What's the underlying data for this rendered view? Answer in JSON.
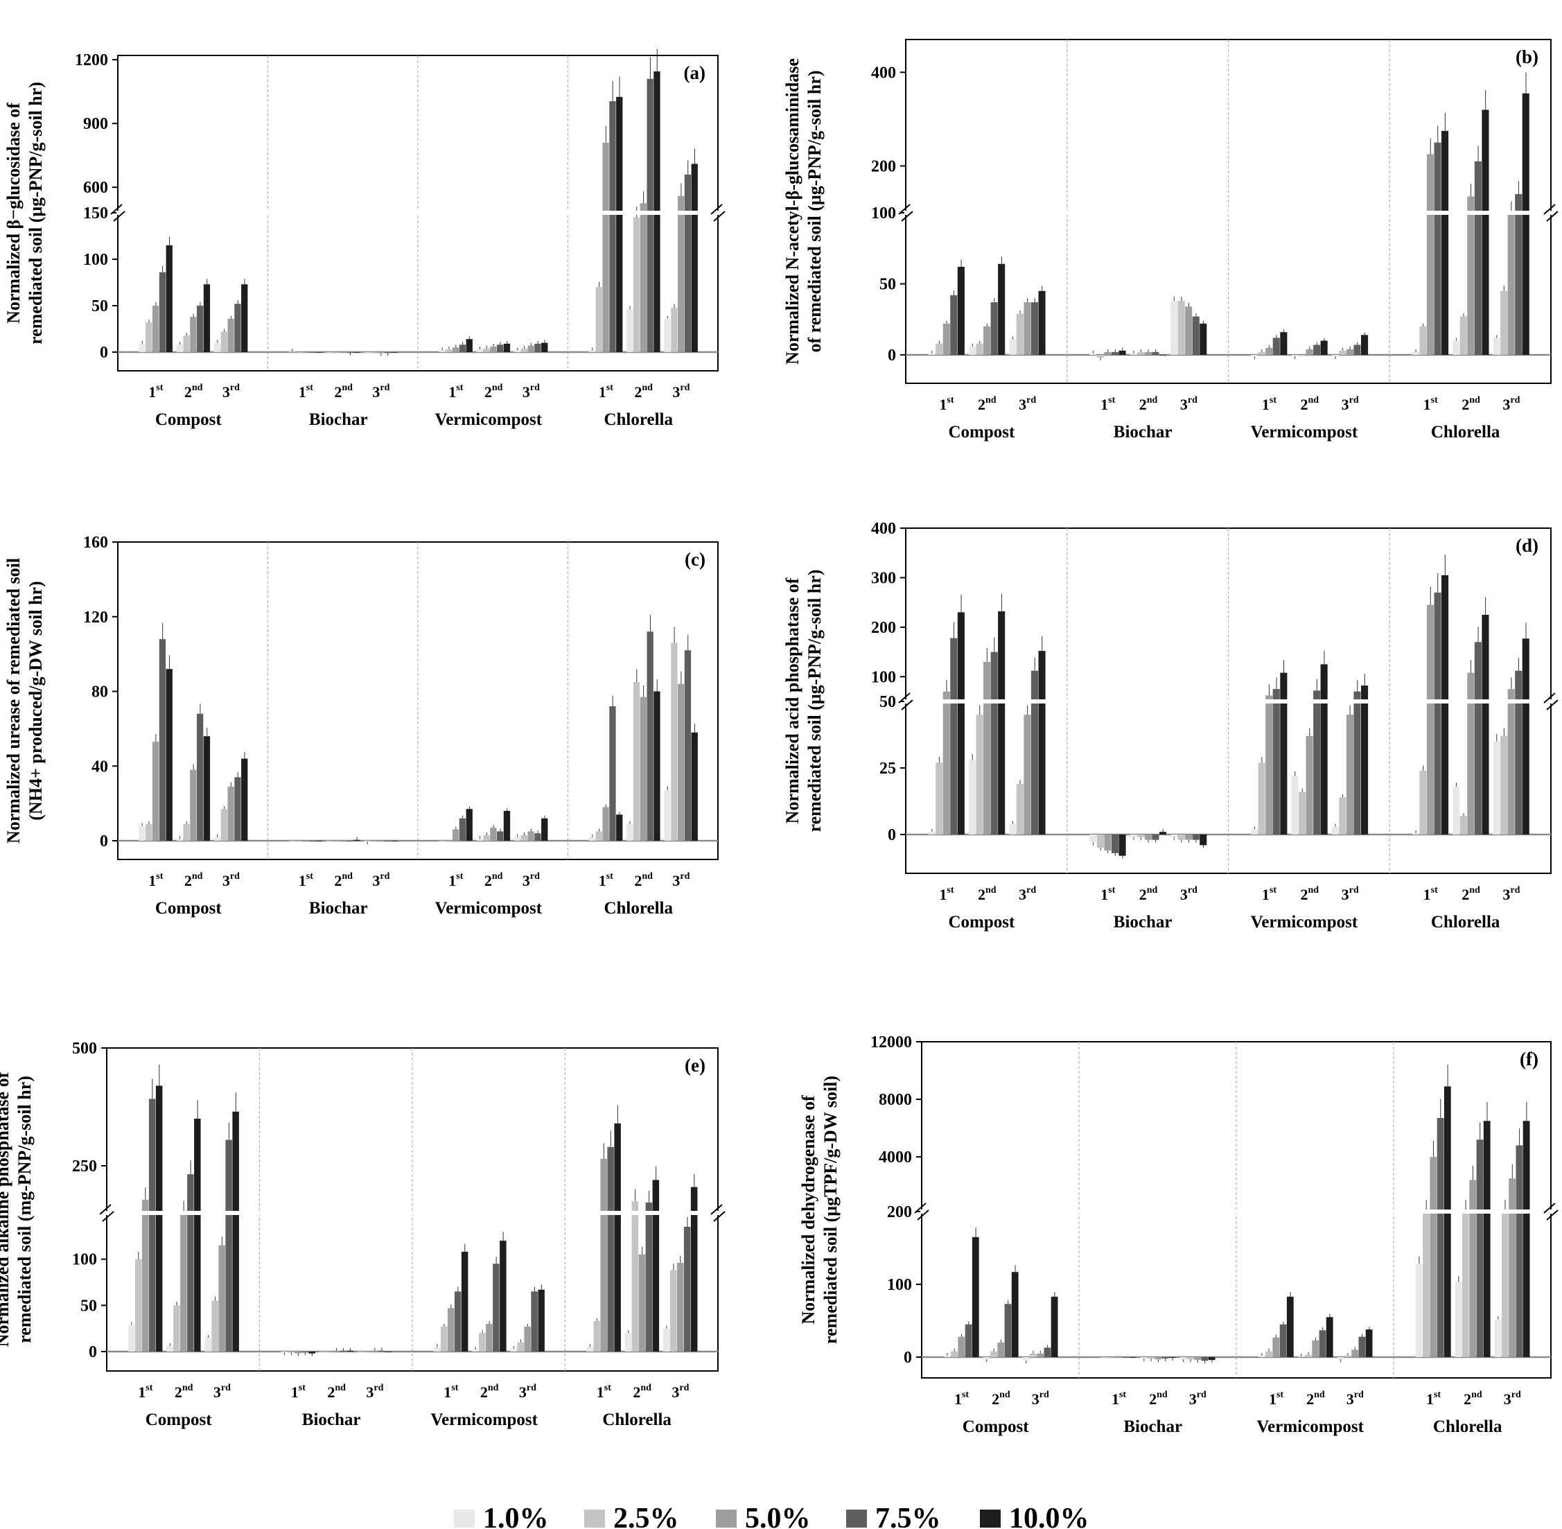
{
  "legend": {
    "series": [
      "1.0%",
      "2.5%",
      "5.0%",
      "7.5%",
      "10.0%"
    ],
    "colors": [
      "#e8e8e8",
      "#c4c4c4",
      "#9e9e9e",
      "#5e5e5e",
      "#1e1e1e"
    ]
  },
  "groups": [
    "Compost",
    "Biochar",
    "Vermicompost",
    "Chlorella"
  ],
  "harvests": [
    {
      "num": "1",
      "sup": "st"
    },
    {
      "num": "2",
      "sup": "nd"
    },
    {
      "num": "3",
      "sup": "rd"
    }
  ],
  "chart_data": [
    {
      "type": "bar",
      "panel": "(a)",
      "ylabel": [
        "Normalized β−glucosidase of",
        "remediated soil (μg-PNP/g-soil hr)"
      ],
      "broken_axis": true,
      "lower_range": [
        0,
        150
      ],
      "lower_ticks": [
        0,
        50,
        100,
        150
      ],
      "upper_range": [
        480,
        1220
      ],
      "upper_ticks": [
        600,
        900,
        1200
      ],
      "values": [
        [
          [
            9,
            32,
            50,
            86,
            115
          ],
          [
            8,
            18,
            38,
            50,
            73
          ],
          [
            10,
            22,
            36,
            52,
            73
          ]
        ],
        [
          [
            0.5,
            0,
            0,
            0,
            0
          ],
          [
            0,
            0,
            0,
            -0.5,
            0
          ],
          [
            0,
            0,
            -1,
            -1,
            0
          ]
        ],
        [
          [
            2,
            3,
            5,
            8,
            14
          ],
          [
            3,
            4,
            6,
            8,
            9
          ],
          [
            2,
            4,
            7,
            9,
            10
          ]
        ],
        [
          [
            2,
            70,
            810,
            1005,
            1025
          ],
          [
            46,
            145,
            525,
            1110,
            1145
          ],
          [
            36,
            48,
            560,
            660,
            710
          ]
        ]
      ]
    },
    {
      "type": "bar",
      "panel": "(b)",
      "ylabel": [
        "Normalized N-acetyl-β-glucosaminidase",
        "of remediated soil (μg-PNP/g-soil hr)"
      ],
      "broken_axis": true,
      "lower_range": [
        -15,
        100
      ],
      "lower_ticks": [
        0,
        50,
        100
      ],
      "upper_range": [
        100,
        470
      ],
      "upper_ticks": [
        200,
        400
      ],
      "values": [
        [
          [
            1,
            8,
            22,
            42,
            62
          ],
          [
            6,
            8,
            20,
            37,
            64
          ],
          [
            11,
            29,
            37,
            37,
            45
          ]
        ],
        [
          [
            1,
            -2,
            2,
            2,
            3
          ],
          [
            1,
            2,
            2,
            2,
            0
          ],
          [
            38,
            38,
            34,
            27,
            22
          ]
        ],
        [
          [
            -1,
            2,
            5,
            12,
            16
          ],
          [
            -1,
            0,
            4,
            7,
            10
          ],
          [
            -1,
            3,
            4,
            7,
            14
          ]
        ],
        [
          [
            2,
            20,
            225,
            250,
            275
          ],
          [
            10,
            27,
            135,
            210,
            320
          ],
          [
            12,
            45,
            100,
            140,
            355
          ]
        ]
      ]
    },
    {
      "type": "bar",
      "panel": "(c)",
      "ylabel": [
        "Normalized urease of remediated soil",
        "(NH4+ produced/g-DW soil hr)"
      ],
      "broken_axis": false,
      "range": [
        -8,
        160
      ],
      "ticks": [
        0,
        40,
        80,
        120,
        160
      ],
      "values": [
        [
          [
            8,
            9,
            53,
            108,
            92
          ],
          [
            1,
            9,
            38,
            68,
            56
          ],
          [
            2,
            17,
            29,
            34,
            44
          ]
        ],
        [
          [
            0,
            0,
            0,
            0,
            0
          ],
          [
            0,
            0,
            0,
            0,
            0.5
          ],
          [
            -0.5,
            0,
            0,
            0,
            0
          ]
        ],
        [
          [
            0,
            0,
            6,
            12,
            17
          ],
          [
            1,
            3,
            7,
            5,
            16
          ],
          [
            2,
            3,
            5,
            4,
            12
          ]
        ],
        [
          [
            2,
            5,
            18,
            72,
            14
          ],
          [
            9,
            85,
            77,
            112,
            80
          ],
          [
            27,
            106,
            84,
            102,
            58
          ]
        ]
      ]
    },
    {
      "type": "bar",
      "panel": "(d)",
      "ylabel": [
        "Normalized acid phosphatase of",
        "remediated soil (μg-PNP/g-soil hr)"
      ],
      "broken_axis": true,
      "lower_range": [
        -15,
        50
      ],
      "lower_ticks": [
        0,
        25,
        50
      ],
      "upper_range": [
        50,
        400
      ],
      "upper_ticks": [
        100,
        200,
        300,
        400
      ],
      "values": [
        [
          [
            1,
            27,
            70,
            178,
            230
          ],
          [
            28,
            45,
            130,
            150,
            232
          ],
          [
            4,
            19,
            45,
            112,
            152
          ]
        ],
        [
          [
            -3,
            -5,
            -6,
            -7,
            -8
          ],
          [
            -1,
            -1,
            -2,
            -2,
            1
          ],
          [
            -1,
            -2,
            -2,
            -2,
            -4
          ]
        ],
        [
          [
            2,
            27,
            62,
            75,
            108
          ],
          [
            22,
            16,
            37,
            72,
            125
          ],
          [
            3,
            14,
            45,
            70,
            82
          ]
        ],
        [
          [
            0.5,
            24,
            245,
            270,
            305
          ],
          [
            18,
            7,
            108,
            170,
            225
          ],
          [
            35,
            37,
            75,
            112,
            177
          ]
        ]
      ]
    },
    {
      "type": "bar",
      "panel": "(e)",
      "ylabel": [
        "Normalized alkaline phosphatase of",
        "remediated soil (mg-PNP/g-soil hr)"
      ],
      "broken_axis": true,
      "lower_range": [
        -20,
        150
      ],
      "lower_ticks": [
        0,
        50,
        100
      ],
      "upper_range": [
        150,
        500
      ],
      "upper_ticks": [
        250,
        500
      ],
      "values": [
        [
          [
            29,
            100,
            178,
            392,
            420
          ],
          [
            6,
            50,
            152,
            232,
            350
          ],
          [
            15,
            55,
            115,
            305,
            365
          ]
        ],
        [
          [
            -1,
            -1,
            -2,
            -1,
            -2
          ],
          [
            0,
            0,
            1,
            1,
            1
          ],
          [
            0,
            0,
            1,
            1,
            0
          ]
        ],
        [
          [
            5,
            27,
            47,
            65,
            108
          ],
          [
            2,
            20,
            30,
            95,
            120
          ],
          [
            3,
            10,
            27,
            65,
            67
          ]
        ],
        [
          [
            5,
            33,
            265,
            290,
            340
          ],
          [
            20,
            175,
            105,
            172,
            220
          ],
          [
            25,
            88,
            96,
            135,
            205
          ]
        ]
      ]
    },
    {
      "type": "bar",
      "panel": "(f)",
      "ylabel": [
        "Normalized dehydrogenase of",
        "remediated soil (μgTPF/g-DW soil)"
      ],
      "broken_axis": true,
      "lower_range": [
        -30,
        200
      ],
      "lower_ticks": [
        0,
        100,
        200
      ],
      "upper_range": [
        200,
        12000
      ],
      "upper_ticks": [
        4000,
        8000,
        12000
      ],
      "values": [
        [
          [
            2,
            8,
            28,
            45,
            165
          ],
          [
            -3,
            8,
            20,
            73,
            117
          ],
          [
            -5,
            5,
            5,
            13,
            83
          ]
        ],
        [
          [
            0,
            0,
            0,
            0,
            0
          ],
          [
            -2,
            -2,
            -3,
            -2,
            -1
          ],
          [
            -3,
            -3,
            -4,
            -5,
            -4
          ]
        ],
        [
          [
            2,
            8,
            27,
            45,
            83
          ],
          [
            1,
            3,
            23,
            37,
            55
          ],
          [
            -3,
            2,
            10,
            28,
            38
          ]
        ],
        [
          [
            128,
            200,
            4000,
            6700,
            8900
          ],
          [
            103,
            200,
            2400,
            5200,
            6500
          ],
          [
            52,
            200,
            2500,
            4800,
            6500
          ]
        ]
      ]
    }
  ]
}
